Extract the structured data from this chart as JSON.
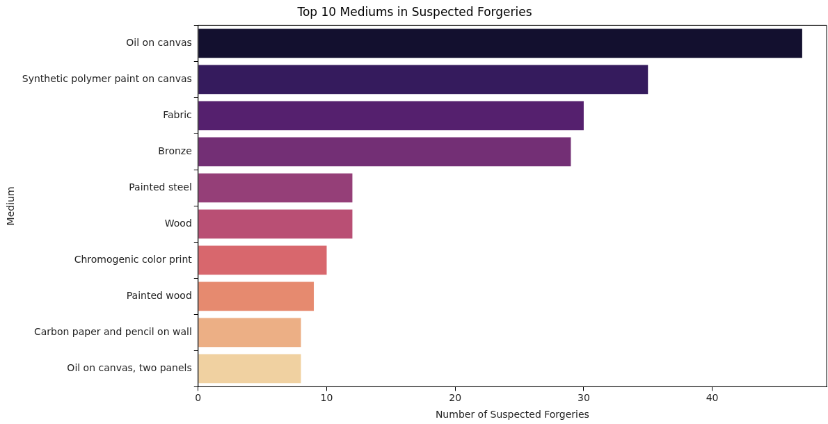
{
  "chart_data": {
    "type": "bar",
    "orientation": "horizontal",
    "title": "Top 10 Mediums in Suspected Forgeries",
    "xlabel": "Number of Suspected Forgeries",
    "ylabel": "Medium",
    "categories": [
      "Oil on canvas",
      "Synthetic polymer paint on canvas",
      "Fabric",
      "Bronze",
      "Painted steel",
      "Wood",
      "Chromogenic color print",
      "Painted wood",
      "Carbon paper and pencil on wall",
      "Oil on canvas, two panels"
    ],
    "values": [
      47,
      35,
      30,
      29,
      12,
      12,
      10,
      9,
      8,
      8
    ],
    "colors": [
      "#13102f",
      "#351b5d",
      "#55206e",
      "#732f75",
      "#953f78",
      "#b94f74",
      "#d8676d",
      "#e68a6f",
      "#ecaf85",
      "#f0d1a1"
    ],
    "xlim": [
      0,
      48.9
    ],
    "xticks": [
      0,
      10,
      20,
      30,
      40
    ],
    "grid": false,
    "legend": false
  }
}
